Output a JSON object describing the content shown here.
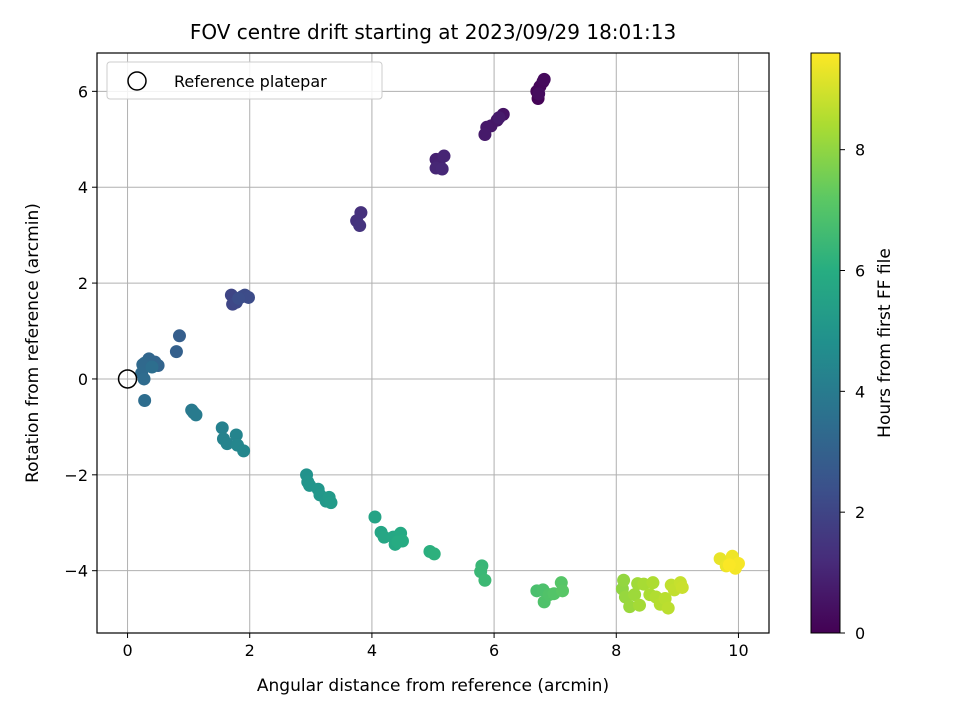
{
  "chart_data": {
    "type": "scatter",
    "title": "FOV centre drift starting at 2023/09/29 18:01:13",
    "xlabel": "Angular distance from reference (arcmin)",
    "ylabel": "Rotation from reference (arcmin)",
    "xlim": [
      -0.5,
      10.5
    ],
    "ylim": [
      -5.3,
      6.8
    ],
    "xticks": [
      0,
      2,
      4,
      6,
      8,
      10
    ],
    "yticks": [
      -4,
      -2,
      0,
      2,
      4,
      6
    ],
    "grid": true,
    "legend": {
      "position": "top-left",
      "entries": [
        "Reference platepar"
      ]
    },
    "reference_point": {
      "x": 0,
      "y": 0
    },
    "colorbar": {
      "label": "Hours from first FF file",
      "range": [
        0,
        9.6
      ],
      "ticks": [
        0,
        2,
        4,
        6,
        8
      ],
      "colormap": "viridis"
    },
    "points": [
      {
        "x": 6.72,
        "y": 5.85,
        "t": 0.05
      },
      {
        "x": 6.7,
        "y": 6.0,
        "t": 0.1
      },
      {
        "x": 6.75,
        "y": 6.1,
        "t": 0.15
      },
      {
        "x": 6.8,
        "y": 6.2,
        "t": 0.2
      },
      {
        "x": 6.82,
        "y": 6.25,
        "t": 0.25
      },
      {
        "x": 6.73,
        "y": 5.95,
        "t": 0.3
      },
      {
        "x": 6.15,
        "y": 5.52,
        "t": 0.5
      },
      {
        "x": 6.05,
        "y": 5.4,
        "t": 0.55
      },
      {
        "x": 5.95,
        "y": 5.28,
        "t": 0.6
      },
      {
        "x": 5.88,
        "y": 5.25,
        "t": 0.65
      },
      {
        "x": 5.85,
        "y": 5.1,
        "t": 0.7
      },
      {
        "x": 6.08,
        "y": 5.45,
        "t": 0.72
      },
      {
        "x": 5.05,
        "y": 4.58,
        "t": 0.9
      },
      {
        "x": 5.1,
        "y": 4.48,
        "t": 0.95
      },
      {
        "x": 5.18,
        "y": 4.65,
        "t": 1.0
      },
      {
        "x": 5.05,
        "y": 4.4,
        "t": 1.05
      },
      {
        "x": 5.15,
        "y": 4.38,
        "t": 1.1
      },
      {
        "x": 3.82,
        "y": 3.47,
        "t": 1.35
      },
      {
        "x": 3.75,
        "y": 3.3,
        "t": 1.4
      },
      {
        "x": 3.8,
        "y": 3.2,
        "t": 1.45
      },
      {
        "x": 1.7,
        "y": 1.75,
        "t": 2.0
      },
      {
        "x": 1.72,
        "y": 1.56,
        "t": 2.05
      },
      {
        "x": 1.78,
        "y": 1.6,
        "t": 2.1
      },
      {
        "x": 1.88,
        "y": 1.72,
        "t": 2.15
      },
      {
        "x": 1.92,
        "y": 1.75,
        "t": 2.2
      },
      {
        "x": 1.98,
        "y": 1.7,
        "t": 2.25
      },
      {
        "x": 1.82,
        "y": 1.68,
        "t": 2.3
      },
      {
        "x": 0.85,
        "y": 0.9,
        "t": 2.9
      },
      {
        "x": 0.8,
        "y": 0.57,
        "t": 2.95
      },
      {
        "x": 0.5,
        "y": 0.28,
        "t": 3.1
      },
      {
        "x": 0.45,
        "y": 0.35,
        "t": 3.15
      },
      {
        "x": 0.35,
        "y": 0.42,
        "t": 3.2
      },
      {
        "x": 0.28,
        "y": 0.33,
        "t": 3.25
      },
      {
        "x": 0.25,
        "y": 0.3,
        "t": 3.3
      },
      {
        "x": 0.23,
        "y": 0.12,
        "t": 3.35
      },
      {
        "x": 0.27,
        "y": 0.0,
        "t": 3.4
      },
      {
        "x": 0.28,
        "y": -0.45,
        "t": 3.45
      },
      {
        "x": 0.4,
        "y": 0.25,
        "t": 3.5
      },
      {
        "x": 1.05,
        "y": -0.65,
        "t": 3.9
      },
      {
        "x": 1.08,
        "y": -0.7,
        "t": 3.95
      },
      {
        "x": 1.12,
        "y": -0.75,
        "t": 4.0
      },
      {
        "x": 1.55,
        "y": -1.02,
        "t": 4.2
      },
      {
        "x": 1.57,
        "y": -1.25,
        "t": 4.25
      },
      {
        "x": 1.63,
        "y": -1.35,
        "t": 4.3
      },
      {
        "x": 1.78,
        "y": -1.17,
        "t": 4.35
      },
      {
        "x": 1.8,
        "y": -1.38,
        "t": 4.4
      },
      {
        "x": 1.9,
        "y": -1.5,
        "t": 4.45
      },
      {
        "x": 2.93,
        "y": -2.0,
        "t": 4.9
      },
      {
        "x": 2.95,
        "y": -2.15,
        "t": 4.95
      },
      {
        "x": 2.98,
        "y": -2.22,
        "t": 5.0
      },
      {
        "x": 3.12,
        "y": -2.3,
        "t": 5.05
      },
      {
        "x": 3.15,
        "y": -2.42,
        "t": 5.1
      },
      {
        "x": 3.25,
        "y": -2.55,
        "t": 5.15
      },
      {
        "x": 3.3,
        "y": -2.47,
        "t": 5.2
      },
      {
        "x": 3.33,
        "y": -2.58,
        "t": 5.25
      },
      {
        "x": 4.05,
        "y": -2.88,
        "t": 5.6
      },
      {
        "x": 4.15,
        "y": -3.2,
        "t": 5.65
      },
      {
        "x": 4.2,
        "y": -3.3,
        "t": 5.7
      },
      {
        "x": 4.35,
        "y": -3.3,
        "t": 5.75
      },
      {
        "x": 4.38,
        "y": -3.45,
        "t": 5.8
      },
      {
        "x": 4.47,
        "y": -3.22,
        "t": 5.85
      },
      {
        "x": 4.5,
        "y": -3.38,
        "t": 5.9
      },
      {
        "x": 4.42,
        "y": -3.4,
        "t": 5.92
      },
      {
        "x": 4.95,
        "y": -3.6,
        "t": 6.1
      },
      {
        "x": 5.02,
        "y": -3.65,
        "t": 6.15
      },
      {
        "x": 5.8,
        "y": -3.9,
        "t": 6.4
      },
      {
        "x": 5.78,
        "y": -4.02,
        "t": 6.45
      },
      {
        "x": 5.85,
        "y": -4.2,
        "t": 6.5
      },
      {
        "x": 6.7,
        "y": -4.42,
        "t": 6.8
      },
      {
        "x": 6.8,
        "y": -4.4,
        "t": 6.85
      },
      {
        "x": 6.82,
        "y": -4.65,
        "t": 6.9
      },
      {
        "x": 6.9,
        "y": -4.5,
        "t": 6.95
      },
      {
        "x": 6.98,
        "y": -4.48,
        "t": 7.0
      },
      {
        "x": 7.1,
        "y": -4.25,
        "t": 7.05
      },
      {
        "x": 7.12,
        "y": -4.42,
        "t": 7.1
      },
      {
        "x": 8.1,
        "y": -4.38,
        "t": 8.0
      },
      {
        "x": 8.12,
        "y": -4.2,
        "t": 8.05
      },
      {
        "x": 8.15,
        "y": -4.55,
        "t": 8.1
      },
      {
        "x": 8.22,
        "y": -4.75,
        "t": 8.15
      },
      {
        "x": 8.3,
        "y": -4.5,
        "t": 8.2
      },
      {
        "x": 8.35,
        "y": -4.27,
        "t": 8.25
      },
      {
        "x": 8.38,
        "y": -4.72,
        "t": 8.3
      },
      {
        "x": 8.45,
        "y": -4.28,
        "t": 8.35
      },
      {
        "x": 8.55,
        "y": -4.5,
        "t": 8.4
      },
      {
        "x": 8.6,
        "y": -4.25,
        "t": 8.45
      },
      {
        "x": 8.65,
        "y": -4.55,
        "t": 8.5
      },
      {
        "x": 8.72,
        "y": -4.7,
        "t": 8.55
      },
      {
        "x": 8.8,
        "y": -4.58,
        "t": 8.6
      },
      {
        "x": 8.85,
        "y": -4.78,
        "t": 8.65
      },
      {
        "x": 8.9,
        "y": -4.3,
        "t": 8.7
      },
      {
        "x": 8.95,
        "y": -4.4,
        "t": 8.75
      },
      {
        "x": 9.05,
        "y": -4.25,
        "t": 8.8
      },
      {
        "x": 9.08,
        "y": -4.35,
        "t": 8.85
      },
      {
        "x": 9.7,
        "y": -3.75,
        "t": 9.3
      },
      {
        "x": 9.8,
        "y": -3.9,
        "t": 9.35
      },
      {
        "x": 9.9,
        "y": -3.7,
        "t": 9.4
      },
      {
        "x": 9.95,
        "y": -3.95,
        "t": 9.45
      },
      {
        "x": 10.0,
        "y": -3.85,
        "t": 9.5
      },
      {
        "x": 9.85,
        "y": -3.88,
        "t": 9.55
      }
    ]
  }
}
